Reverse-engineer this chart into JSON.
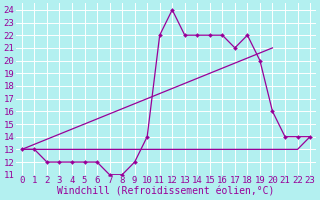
{
  "xlabel": "Windchill (Refroidissement éolien,°C)",
  "bg_color": "#b3f0f0",
  "line_color": "#990099",
  "grid_color": "#ffffff",
  "ylim": [
    11,
    24.5
  ],
  "xlim": [
    -0.5,
    23.5
  ],
  "yticks": [
    11,
    12,
    13,
    14,
    15,
    16,
    17,
    18,
    19,
    20,
    21,
    22,
    23,
    24
  ],
  "xticks": [
    0,
    1,
    2,
    3,
    4,
    5,
    6,
    7,
    8,
    9,
    10,
    11,
    12,
    13,
    14,
    15,
    16,
    17,
    18,
    19,
    20,
    21,
    22,
    23
  ],
  "line1_x": [
    0,
    1,
    2,
    3,
    4,
    5,
    6,
    7,
    8,
    9,
    10,
    11,
    12,
    13,
    14,
    15,
    16,
    17,
    18,
    19,
    20,
    21,
    22,
    23
  ],
  "line1_y": [
    13,
    13,
    12,
    12,
    12,
    12,
    12,
    11,
    11,
    12,
    14,
    22,
    24,
    22,
    22,
    22,
    22,
    21,
    22,
    20,
    16,
    14,
    14,
    14
  ],
  "line2_x": [
    0,
    1,
    2,
    3,
    4,
    5,
    6,
    7,
    8,
    9,
    10,
    11,
    12,
    13,
    14,
    15,
    16,
    17,
    18,
    19,
    20,
    21,
    22,
    23
  ],
  "line2_y": [
    13,
    13,
    13,
    13,
    13,
    13,
    13,
    13,
    13,
    13,
    13,
    13,
    13,
    13,
    13,
    13,
    13,
    13,
    13,
    13,
    13,
    13,
    13,
    14
  ],
  "line3_x": [
    0,
    20
  ],
  "line3_y": [
    13,
    21
  ],
  "font_size": 7,
  "tick_font_size": 6.5
}
